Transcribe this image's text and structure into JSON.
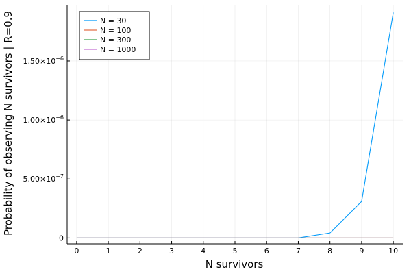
{
  "chart_data": {
    "type": "line",
    "title": "",
    "xlabel": "N survivors",
    "ylabel": "Probability of observing N survivors | R=0.9",
    "x": [
      0,
      1,
      2,
      3,
      4,
      5,
      6,
      7,
      8,
      9,
      10
    ],
    "xlim": [
      -0.3,
      10.3
    ],
    "ylim": [
      -5e-08,
      1.97e-06
    ],
    "xticks": [
      0,
      1,
      2,
      3,
      4,
      5,
      6,
      7,
      8,
      9,
      10
    ],
    "yticks": [
      {
        "value": 0,
        "label": "0",
        "exp": ""
      },
      {
        "value": 5e-07,
        "label": "5.00×10",
        "exp": "−7"
      },
      {
        "value": 1e-06,
        "label": "1.00×10",
        "exp": "−6"
      },
      {
        "value": 1.5e-06,
        "label": "1.50×10",
        "exp": "−6"
      }
    ],
    "grid": true,
    "legend_position": "top-left",
    "series": [
      {
        "name": "N = 30",
        "color": "#009AFA",
        "values": [
          0,
          0,
          0,
          0,
          0,
          0,
          0,
          3e-10,
          4.2e-08,
          3.1e-07,
          1.91e-06
        ]
      },
      {
        "name": "N = 100",
        "color": "#E36F47",
        "values": [
          0,
          0,
          0,
          0,
          0,
          0,
          0,
          0,
          0,
          0,
          0
        ]
      },
      {
        "name": "N = 300",
        "color": "#3EA44E",
        "values": [
          0,
          0,
          0,
          0,
          0,
          0,
          0,
          0,
          0,
          0,
          0
        ]
      },
      {
        "name": "N = 1000",
        "color": "#C371D2",
        "values": [
          0,
          0,
          0,
          0,
          0,
          0,
          0,
          0,
          0,
          0,
          0
        ]
      }
    ]
  }
}
